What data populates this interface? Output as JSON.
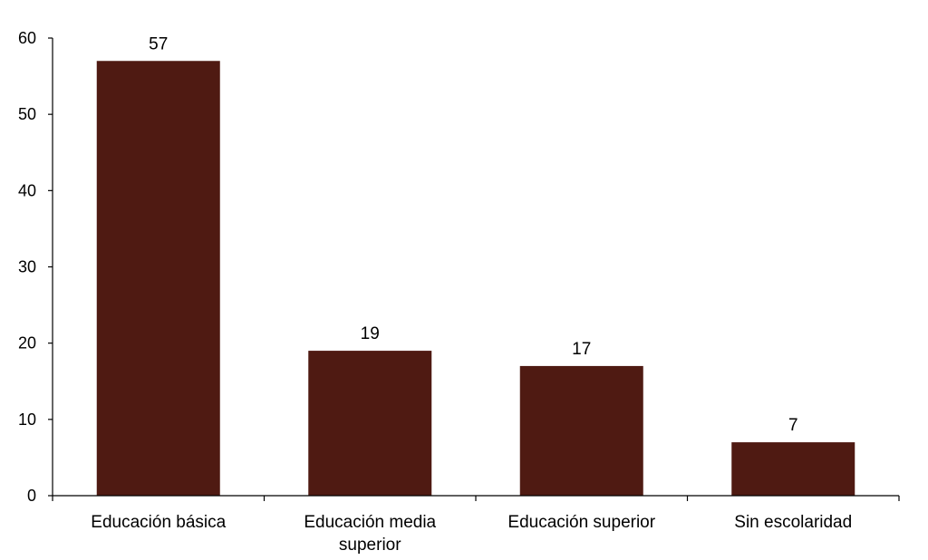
{
  "chart_data": {
    "type": "bar",
    "categories": [
      [
        "Educación básica"
      ],
      [
        "Educación media",
        "superior"
      ],
      [
        "Educación superior"
      ],
      [
        "Sin escolaridad"
      ]
    ],
    "values": [
      57,
      19,
      17,
      7
    ],
    "data_labels": [
      "57",
      "19",
      "17",
      "7"
    ],
    "ylim": [
      0,
      60
    ],
    "yticks": [
      0,
      10,
      20,
      30,
      40,
      50,
      60
    ],
    "grid": false,
    "legend": "none",
    "colors": {
      "bar": "#4f1a12",
      "axis": "#000000"
    }
  }
}
